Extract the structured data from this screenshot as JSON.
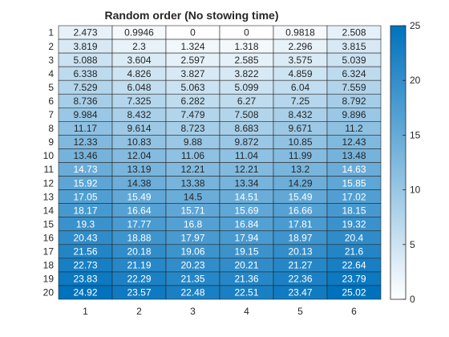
{
  "chart_data": {
    "type": "heatmap",
    "title": "Random order (No stowing time)",
    "x_labels": [
      "1",
      "2",
      "3",
      "4",
      "5",
      "6"
    ],
    "y_labels": [
      "1",
      "2",
      "3",
      "4",
      "5",
      "6",
      "7",
      "8",
      "9",
      "10",
      "11",
      "12",
      "13",
      "14",
      "15",
      "16",
      "17",
      "18",
      "19",
      "20"
    ],
    "values": [
      [
        "2.473",
        "0.9946",
        "0",
        "0",
        "0.9818",
        "2.508"
      ],
      [
        "3.819",
        "2.3",
        "1.324",
        "1.318",
        "2.296",
        "3.815"
      ],
      [
        "5.088",
        "3.604",
        "2.597",
        "2.585",
        "3.575",
        "5.039"
      ],
      [
        "6.338",
        "4.826",
        "3.827",
        "3.822",
        "4.859",
        "6.324"
      ],
      [
        "7.529",
        "6.048",
        "5.063",
        "5.099",
        "6.04",
        "7.559"
      ],
      [
        "8.736",
        "7.325",
        "6.282",
        "6.27",
        "7.25",
        "8.792"
      ],
      [
        "9.984",
        "8.432",
        "7.479",
        "7.508",
        "8.432",
        "9.896"
      ],
      [
        "11.17",
        "9.614",
        "8.723",
        "8.683",
        "9.671",
        "11.2"
      ],
      [
        "12.33",
        "10.83",
        "9.88",
        "9.872",
        "10.85",
        "12.43"
      ],
      [
        "13.46",
        "12.04",
        "11.06",
        "11.04",
        "11.99",
        "13.48"
      ],
      [
        "14.73",
        "13.19",
        "12.21",
        "12.21",
        "13.2",
        "14.63"
      ],
      [
        "15.92",
        "14.38",
        "13.38",
        "13.34",
        "14.29",
        "15.85"
      ],
      [
        "17.05",
        "15.49",
        "14.5",
        "14.51",
        "15.49",
        "17.02"
      ],
      [
        "18.17",
        "16.64",
        "15.71",
        "15.69",
        "16.66",
        "18.15"
      ],
      [
        "19.3",
        "17.77",
        "16.8",
        "16.84",
        "17.81",
        "19.32"
      ],
      [
        "20.43",
        "18.88",
        "17.97",
        "17.94",
        "18.97",
        "20.4"
      ],
      [
        "21.56",
        "20.18",
        "19.06",
        "19.15",
        "20.13",
        "21.6"
      ],
      [
        "22.73",
        "21.19",
        "20.23",
        "20.21",
        "21.27",
        "22.64"
      ],
      [
        "23.83",
        "22.29",
        "21.35",
        "21.36",
        "22.36",
        "23.79"
      ],
      [
        "24.92",
        "23.57",
        "22.48",
        "22.51",
        "23.47",
        "25.02"
      ]
    ],
    "colorbar": {
      "limits": [
        0,
        25
      ],
      "ticks": [
        "0",
        "5",
        "10",
        "15",
        "20",
        "25"
      ],
      "color_low": "#ffffff",
      "color_high": "#0072bd"
    },
    "text_color_dark": "#262626",
    "text_color_light": "#ffffff",
    "grid": true,
    "legend": "colorbar-right"
  }
}
